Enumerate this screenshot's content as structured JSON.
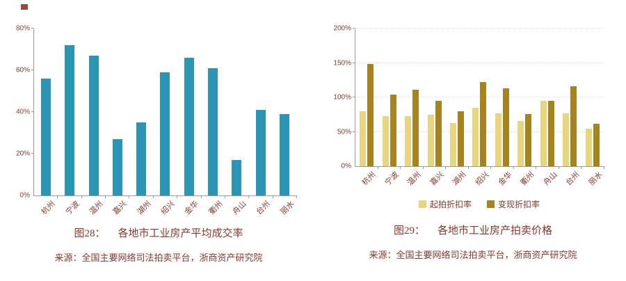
{
  "colors": {
    "text": "#85382C",
    "axis": "#9a9a9a",
    "grid": "#d9d9d9",
    "teal_bar": "#2A95B4",
    "light_gold_bar": "#E9D57E",
    "dark_gold_bar": "#A5831F"
  },
  "figures": [
    {
      "caption_label": "图28：",
      "caption_title": "各地市工业房产平均成交率",
      "source": "来源：全国主要网络司法拍卖平台，浙商资产研究院"
    },
    {
      "caption_label": "图29：",
      "caption_title": "各地市工业房产拍卖价格",
      "source": "来源：全国主要网络司法拍卖平台，浙商资产研究院"
    }
  ],
  "chart_data": [
    {
      "type": "bar",
      "title": "各地市工业房产平均成交率",
      "categories": [
        "杭州",
        "宁波",
        "温州",
        "嘉兴",
        "湖州",
        "绍兴",
        "金华",
        "衢州",
        "舟山",
        "台州",
        "丽水"
      ],
      "values": [
        56,
        72,
        67,
        27,
        35,
        59,
        66,
        61,
        17,
        41,
        39
      ],
      "unit": "%",
      "xlabel": "",
      "ylabel": "",
      "ylim": [
        0,
        80
      ],
      "yticks": [
        0,
        20,
        40,
        60,
        80
      ],
      "ytick_labels": [
        "0%",
        "20%",
        "40%",
        "60%",
        "80%"
      ],
      "colors": [
        "#2A95B4"
      ],
      "grid": false,
      "legend": false
    },
    {
      "type": "bar",
      "title": "各地市工业房产拍卖价格",
      "categories": [
        "杭州",
        "宁波",
        "温州",
        "嘉兴",
        "湖州",
        "绍兴",
        "金华",
        "衢州",
        "舟山",
        "台州",
        "丽水"
      ],
      "series": [
        {
          "name": "起拍折扣率",
          "values": [
            80,
            73,
            73,
            75,
            63,
            85,
            77,
            66,
            95,
            77,
            55
          ]
        },
        {
          "name": "变现折扣率",
          "values": [
            148,
            104,
            111,
            95,
            80,
            122,
            113,
            76,
            95,
            116,
            62
          ]
        }
      ],
      "unit": "%",
      "xlabel": "",
      "ylabel": "",
      "ylim": [
        0,
        200
      ],
      "yticks": [
        0,
        50,
        100,
        150,
        200
      ],
      "ytick_labels": [
        "0%",
        "50%",
        "100%",
        "150%",
        "200%"
      ],
      "colors": [
        "#E9D57E",
        "#A5831F"
      ],
      "grid": true,
      "legend": true,
      "legend_position": "bottom"
    }
  ]
}
